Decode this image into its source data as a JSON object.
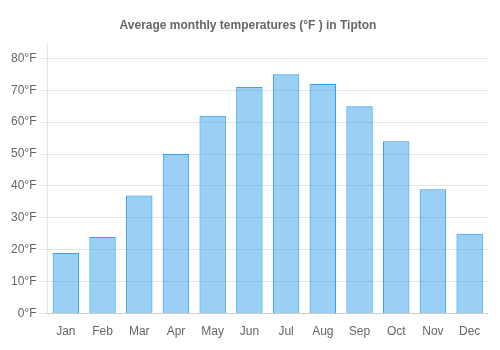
{
  "chart_data": {
    "type": "bar",
    "title": "Average monthly temperatures (°F ) in Tipton",
    "categories": [
      "Jan",
      "Feb",
      "Mar",
      "Apr",
      "May",
      "Jun",
      "Jul",
      "Aug",
      "Sep",
      "Oct",
      "Nov",
      "Dec"
    ],
    "values": [
      19,
      24,
      37,
      50,
      62,
      71,
      75,
      72,
      65,
      54,
      39,
      25
    ],
    "ylim": [
      0,
      85
    ],
    "yticks": [
      {
        "value": 0,
        "label": "0°F"
      },
      {
        "value": 10,
        "label": "10°F"
      },
      {
        "value": 20,
        "label": "20°F"
      },
      {
        "value": 30,
        "label": "30°F"
      },
      {
        "value": 40,
        "label": "40°F"
      },
      {
        "value": 50,
        "label": "50°F"
      },
      {
        "value": 60,
        "label": "60°F"
      },
      {
        "value": 70,
        "label": "70°F"
      },
      {
        "value": 80,
        "label": "80°F"
      }
    ],
    "grid": true
  }
}
